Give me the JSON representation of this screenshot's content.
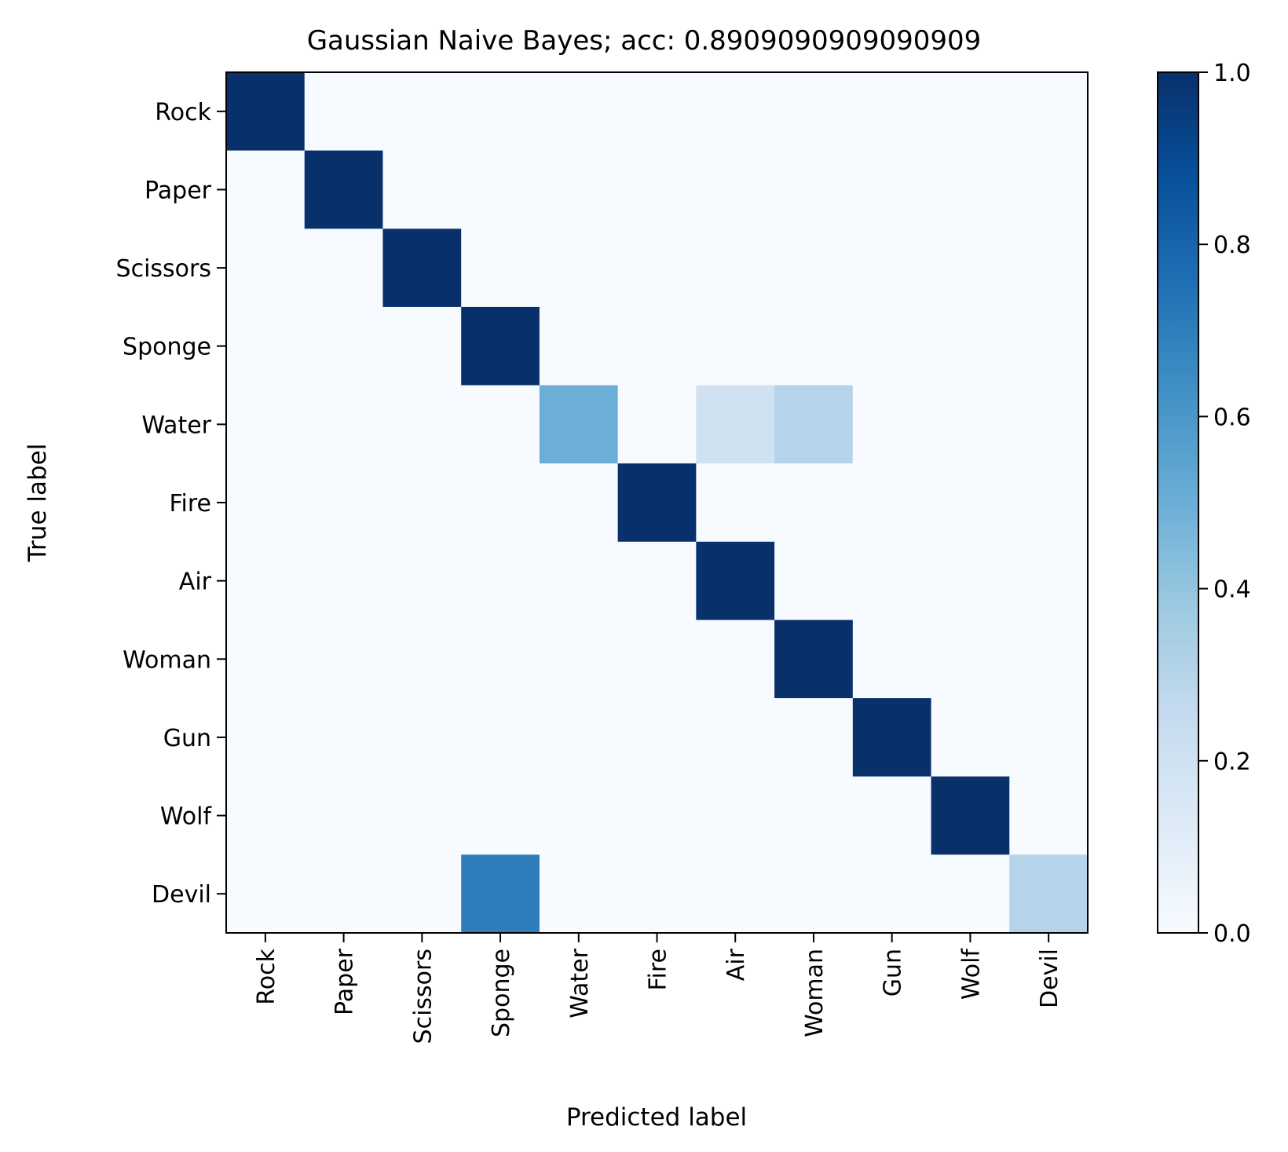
{
  "chart_data": {
    "type": "heatmap",
    "title": "Gaussian Naive Bayes; acc: 0.8909090909090909",
    "xlabel": "Predicted label",
    "ylabel": "True label",
    "x_categories": [
      "Rock",
      "Paper",
      "Scissors",
      "Sponge",
      "Water",
      "Fire",
      "Air",
      "Woman",
      "Gun",
      "Wolf",
      "Devil"
    ],
    "y_categories": [
      "Rock",
      "Paper",
      "Scissors",
      "Sponge",
      "Water",
      "Fire",
      "Air",
      "Woman",
      "Gun",
      "Wolf",
      "Devil"
    ],
    "values": [
      [
        1,
        0,
        0,
        0,
        0,
        0,
        0,
        0,
        0,
        0,
        0
      ],
      [
        0,
        1,
        0,
        0,
        0,
        0,
        0,
        0,
        0,
        0,
        0
      ],
      [
        0,
        0,
        1,
        0,
        0,
        0,
        0,
        0,
        0,
        0,
        0
      ],
      [
        0,
        0,
        0,
        1,
        0,
        0,
        0,
        0,
        0,
        0,
        0
      ],
      [
        0,
        0,
        0,
        0,
        0.5,
        0,
        0.2,
        0.3,
        0,
        0,
        0
      ],
      [
        0,
        0,
        0,
        0,
        0,
        1,
        0,
        0,
        0,
        0,
        0
      ],
      [
        0,
        0,
        0,
        0,
        0,
        0,
        1,
        0,
        0,
        0,
        0
      ],
      [
        0,
        0,
        0,
        0,
        0,
        0,
        0,
        1,
        0,
        0,
        0
      ],
      [
        0,
        0,
        0,
        0,
        0,
        0,
        0,
        0,
        1,
        0,
        0
      ],
      [
        0,
        0,
        0,
        0,
        0,
        0,
        0,
        0,
        0,
        1,
        0
      ],
      [
        0,
        0,
        0,
        0.7,
        0,
        0,
        0,
        0,
        0,
        0,
        0.3
      ]
    ],
    "colorbar": {
      "min": 0.0,
      "max": 1.0,
      "ticks": [
        "0.0",
        "0.2",
        "0.4",
        "0.6",
        "0.8",
        "1.0"
      ],
      "colormap": "Blues",
      "colors": [
        "#f7fbff",
        "#deebf7",
        "#c6dbef",
        "#9ecae1",
        "#6baed6",
        "#4292c6",
        "#2171b5",
        "#08519c",
        "#08306b"
      ]
    }
  }
}
